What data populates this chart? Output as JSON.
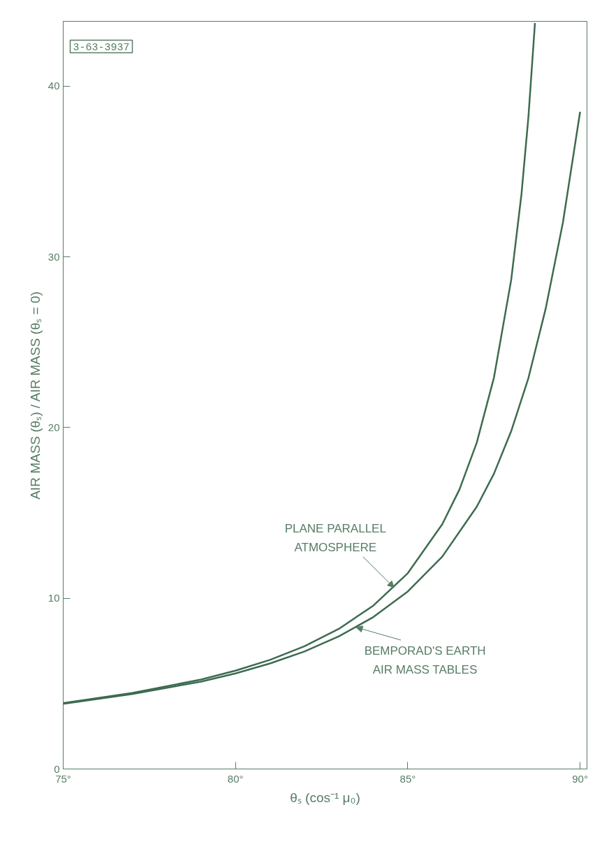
{
  "chart_data": {
    "type": "line",
    "xlabel": "θₛ (cos⁻¹ μ₀)",
    "ylabel": "AIR MASS (θₛ) / AIR MASS (θₛ = 0)",
    "xlim": [
      75,
      90.2
    ],
    "ylim": [
      0,
      43.8
    ],
    "xticks": [
      {
        "value": 75,
        "label": "75°"
      },
      {
        "value": 80,
        "label": "80°"
      },
      {
        "value": 85,
        "label": "85°"
      },
      {
        "value": 90,
        "label": "90°"
      }
    ],
    "yticks": [
      0,
      10,
      20,
      30,
      40
    ],
    "grid": false,
    "marker": "none",
    "line_style": "solid",
    "series": [
      {
        "color": "#3d6b4f",
        "x": [
          75,
          77,
          79,
          80,
          81,
          82,
          83,
          84,
          85,
          86,
          86.5,
          87,
          87.5,
          88,
          88.3,
          88.5,
          88.69
        ],
        "values": [
          3.86,
          4.45,
          5.24,
          5.76,
          6.39,
          7.19,
          8.21,
          9.57,
          11.47,
          14.34,
          16.38,
          19.11,
          22.93,
          28.65,
          33.7,
          38.2,
          43.7
        ]
      },
      {
        "color": "#3d6b4f",
        "x": [
          75,
          77,
          79,
          80,
          81,
          82,
          83,
          84,
          85,
          86,
          87,
          87.5,
          88,
          88.5,
          89,
          89.5,
          90
        ],
        "values": [
          3.82,
          4.39,
          5.12,
          5.6,
          6.18,
          6.88,
          7.77,
          8.9,
          10.4,
          12.44,
          15.36,
          17.3,
          19.79,
          22.9,
          26.96,
          32.0,
          38.5
        ]
      }
    ],
    "annotations": [
      {
        "text": "PLANE PARALLEL\nATMOSPHERE",
        "x": 84.6,
        "y": 10.63
      },
      {
        "text": "BEMPORAD'S EARTH\nAIR MASS TABLES",
        "x": 83.5,
        "y": 8.3
      },
      "3-63-3937"
    ]
  }
}
